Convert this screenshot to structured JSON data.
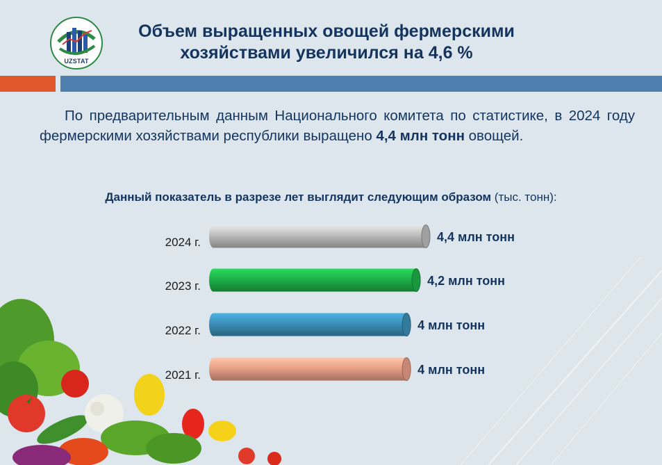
{
  "logo": {
    "text": "UZSTAT"
  },
  "title": {
    "line1": "Объем выращенных овощей фермерскими",
    "line2": "хозяйствами увеличился на 4,6 %"
  },
  "paragraph": {
    "before": "По предварительным данным Национального комитета по статистике, в 2024 году фермерскими хозяйствами республики выращено ",
    "bold": "4,4 млн тонн",
    "after": " овощей."
  },
  "subtitle": {
    "bold": "Данный показатель в разрезе лет выглядит следующим образом",
    "normal": " (тыс. тонн):"
  },
  "colors": {
    "accent_orange": "#e0582b",
    "accent_blue": "#4f7fae",
    "title_navy": "#13345f"
  },
  "chart_data": {
    "type": "bar",
    "orientation": "horizontal",
    "categories": [
      "2024 г.",
      "2023 г.",
      "2022 г.",
      "2021 г."
    ],
    "values": [
      4.4,
      4.2,
      4.0,
      4.0
    ],
    "value_labels": [
      "4,4 млн тонн",
      "4,2 млн тонн",
      "4 млн тонн",
      "4 млн тонн"
    ],
    "bar_colors": [
      "#bcbcbc",
      "#1fb14a",
      "#3c8fb8",
      "#e9a088"
    ],
    "grid": false,
    "legend": "none"
  }
}
